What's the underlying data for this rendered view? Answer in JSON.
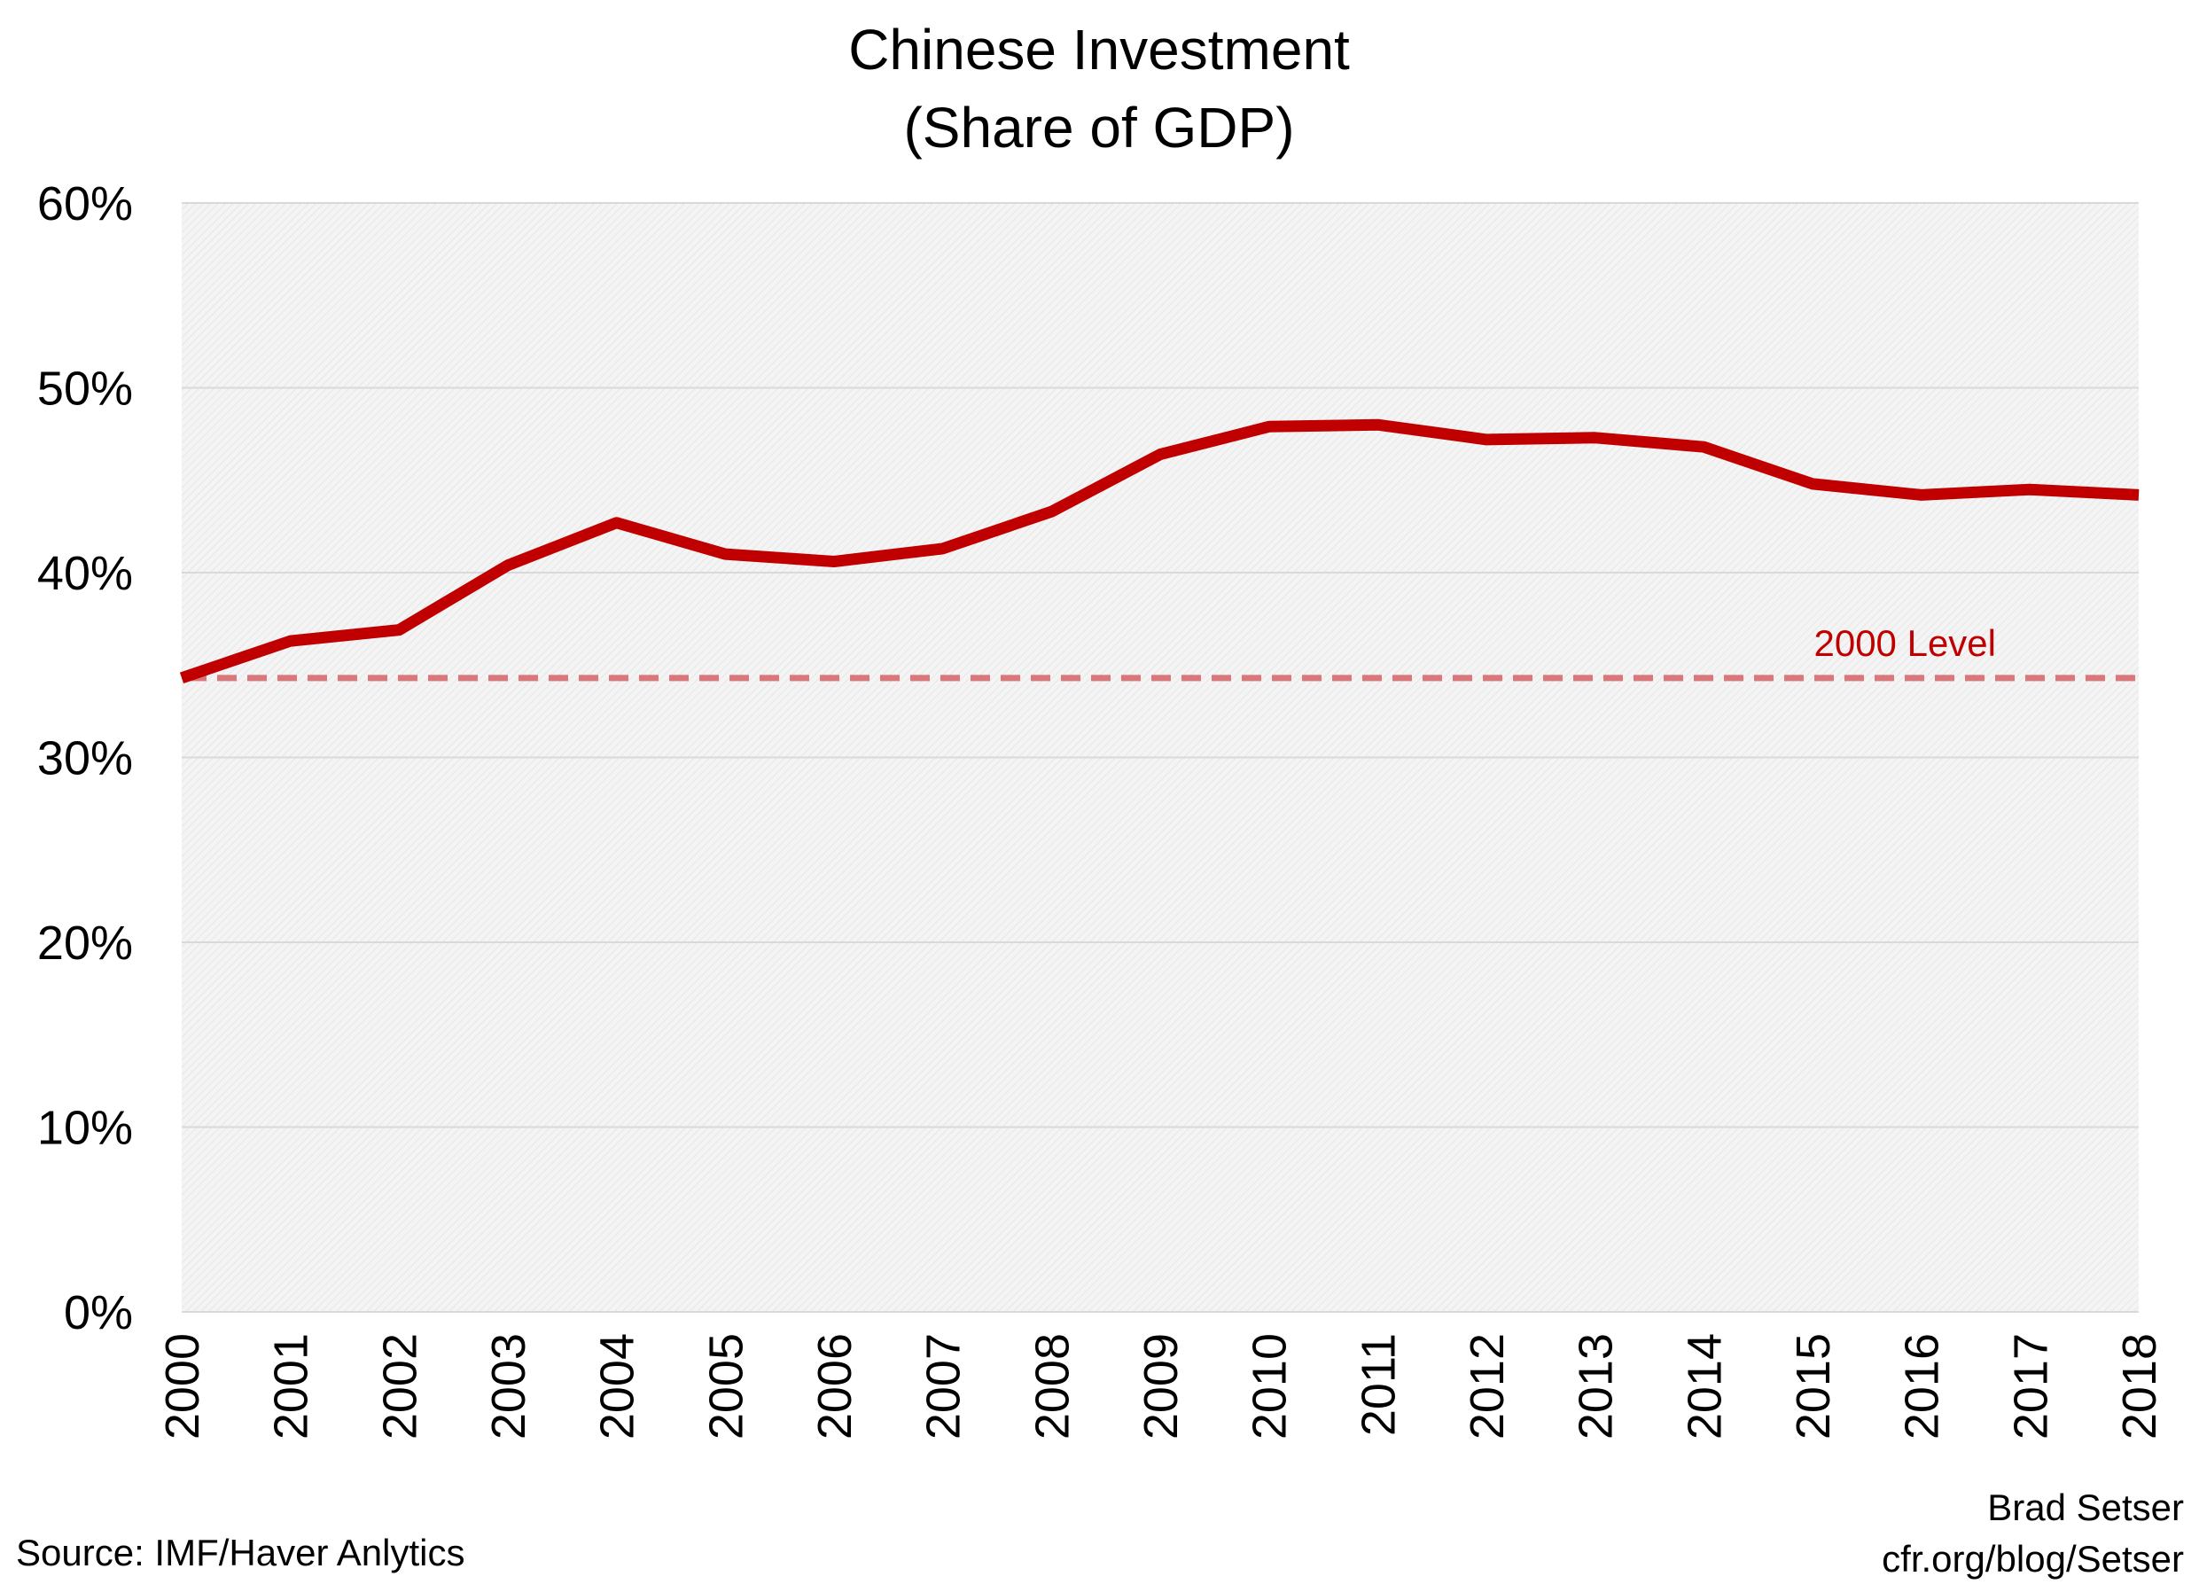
{
  "chart_data": {
    "type": "line",
    "title_lines": [
      "Chinese Investment",
      "(Share of GDP)"
    ],
    "xlabel": "",
    "ylabel": "",
    "x": [
      "2000",
      "2001",
      "2002",
      "2003",
      "2004",
      "2005",
      "2006",
      "2007",
      "2008",
      "2009",
      "2010",
      "2011",
      "2012",
      "2013",
      "2014",
      "2015",
      "2016",
      "2017",
      "2018"
    ],
    "series": [
      {
        "values": [
          34.3,
          36.3,
          36.9,
          40.4,
          42.7,
          41.0,
          40.6,
          41.3,
          43.3,
          46.4,
          47.9,
          48.0,
          47.2,
          47.3,
          46.8,
          44.8,
          44.2,
          44.5,
          44.2
        ],
        "color": "#c00000"
      }
    ],
    "reference_line": {
      "label": "2000 Level",
      "value": 34.3,
      "color": "#d9777a",
      "label_color": "#c00000",
      "style": "dashed"
    },
    "ylim": [
      0,
      60
    ],
    "yticks": [
      0,
      10,
      20,
      30,
      40,
      50,
      60
    ],
    "ytick_labels": [
      "0%",
      "10%",
      "20%",
      "30%",
      "40%",
      "50%",
      "60%"
    ],
    "grid": true,
    "legend": "none",
    "plot_background": "hatched light gray"
  },
  "footer": {
    "source": "Source: IMF/Haver Anlytics",
    "author": "Brad Setser",
    "url": "cfr.org/blog/Setser"
  },
  "colors": {
    "line": "#c00000",
    "reference_line": "#d9777a",
    "gridline": "#d9d9d9",
    "plot_background": "#f2f2f2"
  }
}
